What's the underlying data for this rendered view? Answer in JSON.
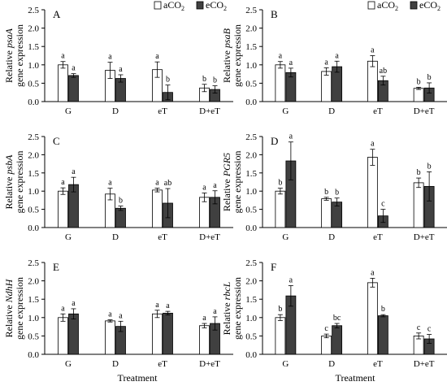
{
  "figure": {
    "xlabel": "Treatment",
    "categories": [
      "G",
      "D",
      "eT",
      "D+eT"
    ],
    "series_colors": {
      "aCO2": "#ffffff",
      "eCO2": "#404040"
    },
    "legend_placement": "top-right"
  },
  "chart_data": [
    {
      "type": "bar",
      "panel": "A",
      "gene": "psaA",
      "ylabel": "Relative psaA gene expression",
      "ylim": [
        0,
        2.5
      ],
      "yticks": [
        "0.0",
        "0.5",
        "1.0",
        "1.5",
        "2.0",
        "2.5"
      ],
      "categories": [
        "G",
        "D",
        "eT",
        "D+eT"
      ],
      "legend": "top-right",
      "series": [
        {
          "name": "aCO2",
          "values": [
            1.0,
            0.85,
            0.87,
            0.37
          ],
          "errors": [
            0.09,
            0.22,
            0.21,
            0.1
          ],
          "letters": [
            "a",
            "a",
            "a",
            "b"
          ]
        },
        {
          "name": "eCO2",
          "values": [
            0.71,
            0.63,
            0.25,
            0.33
          ],
          "errors": [
            0.05,
            0.1,
            0.2,
            0.1
          ],
          "letters": [
            "a",
            "a",
            "b",
            "b"
          ]
        }
      ]
    },
    {
      "type": "bar",
      "panel": "B",
      "gene": "psaB",
      "ylabel": "Relative psaB gene expression",
      "ylim": [
        0,
        2.5
      ],
      "yticks": [
        "0.0",
        "0.5",
        "1.0",
        "1.5",
        "2.0",
        "2.5"
      ],
      "categories": [
        "G",
        "D",
        "eT",
        "D+eT"
      ],
      "legend": "top-right",
      "series": [
        {
          "name": "aCO2",
          "values": [
            1.0,
            0.82,
            1.1,
            0.36
          ],
          "errors": [
            0.09,
            0.1,
            0.15,
            0.03
          ],
          "letters": [
            "a",
            "a",
            "a",
            "b"
          ]
        },
        {
          "name": "eCO2",
          "values": [
            0.79,
            0.95,
            0.57,
            0.37
          ],
          "errors": [
            0.12,
            0.15,
            0.12,
            0.14
          ],
          "letters": [
            "a",
            "a",
            "ab",
            "b"
          ]
        }
      ]
    },
    {
      "type": "bar",
      "panel": "C",
      "gene": "psbA",
      "ylabel": "Relative psbA gene expression",
      "ylim": [
        0,
        2.5
      ],
      "yticks": [
        "0.0",
        "0.5",
        "1.0",
        "1.5",
        "2.0",
        "2.5"
      ],
      "categories": [
        "G",
        "D",
        "eT",
        "D+eT"
      ],
      "series": [
        {
          "name": "aCO2",
          "values": [
            1.0,
            0.92,
            1.03,
            0.83
          ],
          "errors": [
            0.09,
            0.16,
            0.05,
            0.12
          ],
          "letters": [
            "a",
            "a",
            "a",
            "a"
          ]
        },
        {
          "name": "eCO2",
          "values": [
            1.18,
            0.53,
            0.67,
            0.83
          ],
          "errors": [
            0.2,
            0.06,
            0.4,
            0.18
          ],
          "letters": [
            "a",
            "b",
            "ab",
            "a"
          ]
        }
      ]
    },
    {
      "type": "bar",
      "panel": "D",
      "gene": "PGR5",
      "ylabel": "Relative PGR5 gene expression",
      "ylim": [
        0,
        2.5
      ],
      "yticks": [
        "0.0",
        "0.5",
        "1.0",
        "1.5",
        "2.0",
        "2.5"
      ],
      "categories": [
        "G",
        "D",
        "eT",
        "D+eT"
      ],
      "series": [
        {
          "name": "aCO2",
          "values": [
            1.0,
            0.79,
            1.93,
            1.23
          ],
          "errors": [
            0.08,
            0.04,
            0.22,
            0.13
          ],
          "letters": [
            "b",
            "b",
            "a",
            "b"
          ]
        },
        {
          "name": "eCO2",
          "values": [
            1.83,
            0.7,
            0.32,
            1.13
          ],
          "errors": [
            0.52,
            0.11,
            0.18,
            0.4
          ],
          "letters": [
            "a",
            "b",
            "c",
            "b"
          ]
        }
      ]
    },
    {
      "type": "bar",
      "panel": "E",
      "gene": "NdhH",
      "ylabel": "Relative NdhH gene expression",
      "ylim": [
        0,
        2.5
      ],
      "yticks": [
        "0.0",
        "0.5",
        "1.0",
        "1.5",
        "2.0",
        "2.5"
      ],
      "categories": [
        "G",
        "D",
        "eT",
        "D+eT"
      ],
      "series": [
        {
          "name": "aCO2",
          "values": [
            1.0,
            0.91,
            1.1,
            0.78
          ],
          "errors": [
            0.1,
            0.03,
            0.1,
            0.06
          ],
          "letters": [
            "a",
            "a",
            "a",
            "a"
          ]
        },
        {
          "name": "eCO2",
          "values": [
            1.1,
            0.76,
            1.12,
            0.84
          ],
          "errors": [
            0.14,
            0.14,
            0.05,
            0.18
          ],
          "letters": [
            "a",
            "a",
            "a",
            "a"
          ]
        }
      ]
    },
    {
      "type": "bar",
      "panel": "F",
      "gene": "rbcL",
      "ylabel": "Relative rbcL gene expression",
      "ylim": [
        0,
        2.5
      ],
      "yticks": [
        "0.0",
        "0.5",
        "1.0",
        "1.5",
        "2.0",
        "2.5"
      ],
      "categories": [
        "G",
        "D",
        "eT",
        "D+eT"
      ],
      "series": [
        {
          "name": "aCO2",
          "values": [
            1.0,
            0.5,
            1.95,
            0.5
          ],
          "errors": [
            0.08,
            0.05,
            0.12,
            0.08
          ],
          "letters": [
            "b",
            "c",
            "a",
            "c"
          ]
        },
        {
          "name": "eCO2",
          "values": [
            1.59,
            0.78,
            1.05,
            0.42
          ],
          "errors": [
            0.28,
            0.06,
            0.03,
            0.12
          ],
          "letters": [
            "a",
            "bc",
            "b",
            "c"
          ]
        }
      ]
    }
  ]
}
